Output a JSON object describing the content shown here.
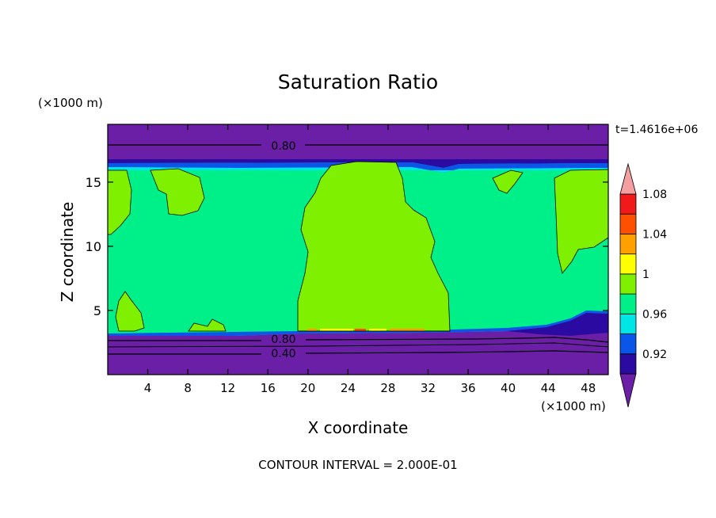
{
  "chart_data": {
    "type": "heatmap",
    "title": "Saturation Ratio",
    "xlabel": "X coordinate",
    "ylabel": "Z coordinate",
    "x_unit_label": "(×1000 m)",
    "y_unit_label": "(×1000 m)",
    "time_label": "t=1.4616e+06",
    "footer": "CONTOUR INTERVAL = 2.000E-01",
    "xlim": [
      0,
      50
    ],
    "ylim": [
      0,
      19.5
    ],
    "x_ticks": [
      4,
      8,
      12,
      16,
      20,
      24,
      28,
      32,
      36,
      40,
      44,
      48
    ],
    "y_ticks": [
      5,
      10,
      15
    ],
    "contour_labels": [
      {
        "text": "0.80",
        "x": 17.5,
        "y": 18.1
      },
      {
        "text": "0.80",
        "x": 17.5,
        "y": 2.9
      },
      {
        "text": "0.40",
        "x": 17.5,
        "y": 1.5
      }
    ],
    "colorbar": {
      "levels": [
        0.92,
        0.96,
        1,
        1.04,
        1.08
      ],
      "level_labels": [
        "0.92",
        "0.96",
        "1",
        "1.04",
        "1.08"
      ],
      "colors": [
        "#6a1fa6",
        "#2a0aa0",
        "#0b55e8",
        "#00e6e6",
        "#00f089",
        "#7ff000",
        "#ffff00",
        "#ffa000",
        "#ff5000",
        "#f01a1a",
        "#f4a0a0"
      ]
    },
    "regions": {
      "dry_stratosphere_value": "<0.92",
      "mid_troposphere_value": "1-1.02",
      "convective_core_value": "1.02-1.04",
      "base_layer_value": "<0.92"
    }
  }
}
